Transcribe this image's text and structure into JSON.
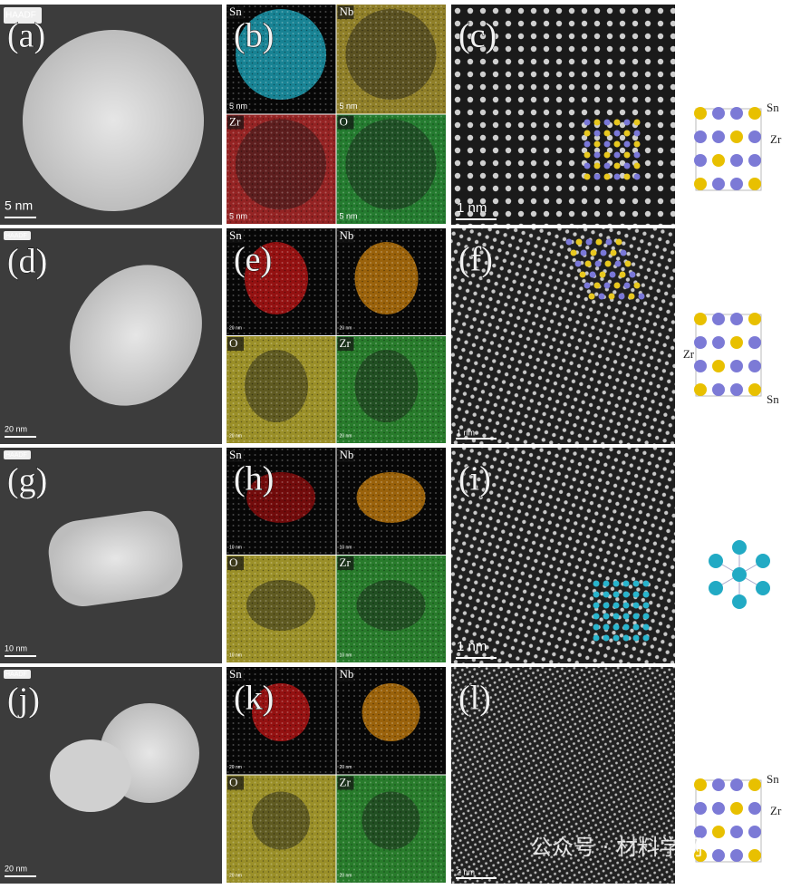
{
  "rows": [
    {
      "haadf": {
        "label": "(a)",
        "badge": "HAADF",
        "scale": "5 nm"
      },
      "eds": {
        "label": "(b)",
        "maps": [
          {
            "element": "Sn",
            "color": "#22b8d0",
            "scale": "5 nm"
          },
          {
            "element": "Nb",
            "color": "#b8a020",
            "scale": "5 nm"
          },
          {
            "element": "Zr",
            "color": "#c01818",
            "scale": "5 nm"
          },
          {
            "element": "O",
            "color": "#1a9a2a",
            "scale": "5 nm"
          }
        ]
      },
      "hrtem": {
        "label": "(c)",
        "scale": "1 nm"
      },
      "structure": {
        "atoms": [
          "Sn",
          "Zr"
        ]
      }
    },
    {
      "haadf": {
        "label": "(d)",
        "badge": "HAADF",
        "scale": "20 nm"
      },
      "eds": {
        "label": "(e)",
        "maps": [
          {
            "element": "Sn",
            "color": "#d01818",
            "scale": "20 nm"
          },
          {
            "element": "Nb",
            "color": "#d88a10",
            "scale": "20 nm"
          },
          {
            "element": "O",
            "color": "#c8b820",
            "scale": "20 nm"
          },
          {
            "element": "Zr",
            "color": "#1f9a25",
            "scale": "20 nm"
          }
        ]
      },
      "hrtem": {
        "label": "(f)",
        "scale": "1 nm"
      },
      "structure": {
        "atoms": [
          "Zr",
          "Sn"
        ]
      }
    },
    {
      "haadf": {
        "label": "(g)",
        "badge": "HAADF",
        "scale": "10 nm"
      },
      "eds": {
        "label": "(h)",
        "maps": [
          {
            "element": "Sn",
            "color": "#a01010",
            "scale": "10 nm"
          },
          {
            "element": "Nb",
            "color": "#d88a10",
            "scale": "10 nm"
          },
          {
            "element": "O",
            "color": "#c8b820",
            "scale": "10 nm"
          },
          {
            "element": "Zr",
            "color": "#1f9a25",
            "scale": "10 nm"
          }
        ]
      },
      "hrtem": {
        "label": "(i)",
        "scale": "1 nm"
      },
      "structure": {
        "atoms": []
      }
    },
    {
      "haadf": {
        "label": "(j)",
        "badge": "HAADF",
        "scale": "20 nm"
      },
      "eds": {
        "label": "(k)",
        "maps": [
          {
            "element": "Sn",
            "color": "#d01818",
            "scale": "20 nm"
          },
          {
            "element": "Nb",
            "color": "#d88a10",
            "scale": "20 nm"
          },
          {
            "element": "O",
            "color": "#c8b820",
            "scale": "20 nm"
          },
          {
            "element": "Zr",
            "color": "#1f9a25",
            "scale": "20 nm"
          }
        ]
      },
      "hrtem": {
        "label": "(l)",
        "scale": "2 nm"
      },
      "structure": {
        "atoms": [
          "Sn",
          "Zr"
        ]
      }
    }
  ],
  "watermark": "公众号 · 材料学网"
}
